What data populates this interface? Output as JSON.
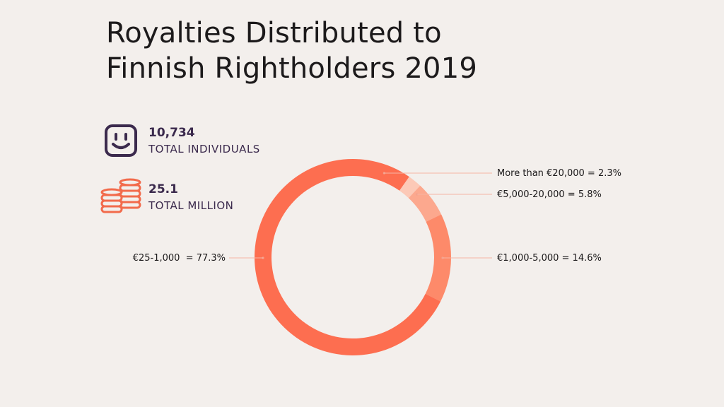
{
  "title": {
    "line1": "Royalties Distributed to",
    "line2": "Finnish Rightholders 2019"
  },
  "stats": {
    "individuals": {
      "value": "10,734",
      "label": "TOTAL INDIVIDUALS",
      "icon": "smiley-face-icon",
      "color": "#3b2a4d"
    },
    "money": {
      "value": "25.1",
      "label": "TOTAL MILLION",
      "icon": "coin-stacks-icon",
      "color": "#f26b4c"
    }
  },
  "chart_data": {
    "type": "pie",
    "donut": true,
    "title": "Royalties Distributed to Finnish Rightholders 2019",
    "slices": [
      {
        "label": "More than €20,000 = 2.3%",
        "category": "More than €20,000",
        "value": 2.3,
        "color": "#fcc9b7"
      },
      {
        "label": "€5,000-20,000 = 5.8%",
        "category": "€5,000-20,000",
        "value": 5.8,
        "color": "#fca88e"
      },
      {
        "label": "€1,000-5,000 = 14.6%",
        "category": "€1,000-5,000",
        "value": 14.6,
        "color": "#fd8a6a"
      },
      {
        "label": "€25-1,000  = 77.3%",
        "category": "€25-1,000",
        "value": 77.3,
        "color": "#fd6e50"
      }
    ]
  }
}
